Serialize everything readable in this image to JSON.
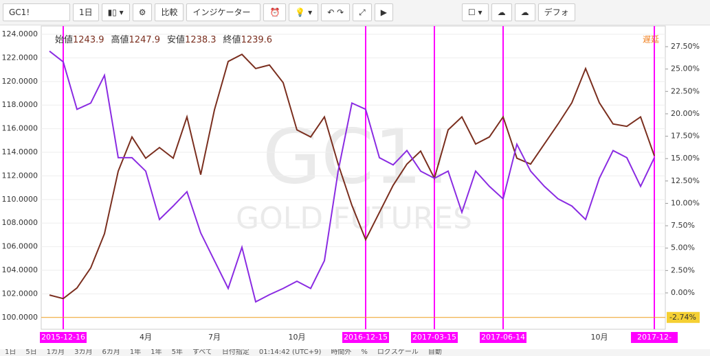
{
  "toolbar": {
    "symbol": "GC1!",
    "interval": "1日",
    "compare": "比較",
    "indicators": "インジケーター",
    "layout": "デフォ"
  },
  "legend": {
    "items": [
      {
        "label": "始値",
        "value": "1243.9"
      },
      {
        "label": "高値",
        "value": "1247.9"
      },
      {
        "label": "安値",
        "value": "1238.3"
      },
      {
        "label": "終値",
        "value": "1239.6"
      }
    ],
    "status": "遅延"
  },
  "watermark": {
    "symbol": "GC1!",
    "name": "GOLD FUTURES"
  },
  "chart_data": {
    "type": "line",
    "categories": [
      null,
      "2015-12-16",
      null,
      null,
      null,
      null,
      null,
      "4月",
      null,
      null,
      null,
      null,
      "7月",
      null,
      null,
      null,
      null,
      null,
      "10月",
      null,
      null,
      null,
      null,
      "2016-12-15",
      null,
      null,
      null,
      null,
      "2017-03-15",
      null,
      null,
      null,
      null,
      "2017-06-14",
      null,
      null,
      null,
      null,
      null,
      null,
      "10月",
      null,
      null,
      null,
      "2017-12-"
    ],
    "series": [
      {
        "name": "GC1!",
        "color": "#7a2e1e",
        "values": [
          101.9,
          101.6,
          102.5,
          104.2,
          107.1,
          112.4,
          115.3,
          113.5,
          114.4,
          113.5,
          117.0,
          112.1,
          117.6,
          121.7,
          122.3,
          121.1,
          121.4,
          119.9,
          115.9,
          115.3,
          117.0,
          113.0,
          109.5,
          106.6,
          108.9,
          111.2,
          113.0,
          114.1,
          111.8,
          115.9,
          117.0,
          114.7,
          115.3,
          117.0,
          113.5,
          113.0,
          114.7,
          116.4,
          118.2,
          121.1,
          118.2,
          116.4,
          116.2,
          117.0,
          113.7
        ]
      },
      {
        "name": "%",
        "color": "#8a2be2",
        "axis": "y2",
        "values": [
          27.0,
          25.8,
          20.5,
          21.2,
          24.3,
          15.1,
          15.1,
          13.6,
          8.2,
          9.7,
          11.3,
          6.7,
          3.6,
          0.5,
          5.1,
          -1.0,
          -0.2,
          0.5,
          1.3,
          0.5,
          3.6,
          13.6,
          21.2,
          20.5,
          15.1,
          14.3,
          15.9,
          13.6,
          12.8,
          13.6,
          9.0,
          13.6,
          11.9,
          10.5,
          16.6,
          13.6,
          11.9,
          10.5,
          9.7,
          8.2,
          12.8,
          15.9,
          15.1,
          11.9,
          15.1
        ]
      }
    ],
    "ylim": [
      99.0,
      124.7
    ],
    "yticks": [
      {
        "value": 100,
        "label": "100.0000"
      },
      {
        "value": 102,
        "label": "102.0000"
      },
      {
        "value": 104,
        "label": "104.0000"
      },
      {
        "value": 106,
        "label": "106.0000"
      },
      {
        "value": 108,
        "label": "108.0000"
      },
      {
        "value": 110,
        "label": "110.0000"
      },
      {
        "value": 112,
        "label": "112.0000"
      },
      {
        "value": 114,
        "label": "114.0000"
      },
      {
        "value": 116,
        "label": "116.0000"
      },
      {
        "value": 118,
        "label": "118.0000"
      },
      {
        "value": 120,
        "label": "120.0000"
      },
      {
        "value": 122,
        "label": "122.0000"
      },
      {
        "value": 124,
        "label": "124.0000"
      }
    ],
    "y2lim": [
      -4.06,
      29.8
    ],
    "y2ticks": [
      {
        "value": 0,
        "label": "0.00%"
      },
      {
        "value": 2.5,
        "label": "2.50%"
      },
      {
        "value": 5,
        "label": "5.00%"
      },
      {
        "value": 7.5,
        "label": "7.50%"
      },
      {
        "value": 10,
        "label": "10.00%"
      },
      {
        "value": 12.5,
        "label": "12.50%"
      },
      {
        "value": 15,
        "label": "15.00%"
      },
      {
        "value": 17.5,
        "label": "17.50%"
      },
      {
        "value": 20,
        "label": "20.00%"
      },
      {
        "value": 22.5,
        "label": "22.50%"
      },
      {
        "value": 25,
        "label": "25.00%"
      },
      {
        "value": 27.5,
        "label": "27.50%"
      }
    ],
    "last_value": {
      "value": -2.74,
      "label": "-2.74%"
    },
    "grid": true
  },
  "bottom_bar": [
    "1日",
    "5日",
    "1カ月",
    "3カ月",
    "6カ月",
    "1年",
    "1年",
    "5年",
    "すべて",
    "日付指定",
    "01:14:42 (UTC+9)",
    "時間外",
    "%",
    "ログスケール",
    "自動"
  ]
}
